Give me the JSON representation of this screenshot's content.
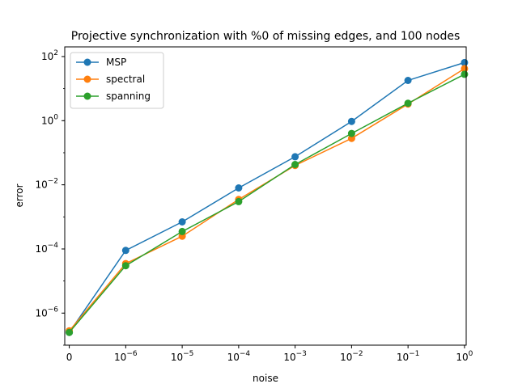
{
  "chart_data": {
    "type": "line",
    "title": "Projective synchronization with %0 of missing edges, and 100 nodes",
    "xlabel": "noise",
    "ylabel": "error",
    "x_scale": "symlog",
    "y_scale": "log",
    "grid": false,
    "legend_position": "top-left",
    "x_ticks": [
      {
        "value": 0,
        "base": "0",
        "exp": ""
      },
      {
        "value": 1e-06,
        "base": "10",
        "exp": "−6"
      },
      {
        "value": 1e-05,
        "base": "10",
        "exp": "−5"
      },
      {
        "value": 0.0001,
        "base": "10",
        "exp": "−4"
      },
      {
        "value": 0.001,
        "base": "10",
        "exp": "−3"
      },
      {
        "value": 0.01,
        "base": "10",
        "exp": "−2"
      },
      {
        "value": 0.1,
        "base": "10",
        "exp": "−1"
      },
      {
        "value": 1,
        "base": "10",
        "exp": "0"
      }
    ],
    "y_ticks": [
      {
        "value": 1e-06,
        "base": "10",
        "exp": "−6"
      },
      {
        "value": 0.0001,
        "base": "10",
        "exp": "−4"
      },
      {
        "value": 0.01,
        "base": "10",
        "exp": "−2"
      },
      {
        "value": 1,
        "base": "10",
        "exp": "0"
      },
      {
        "value": 100,
        "base": "10",
        "exp": "2"
      }
    ],
    "ylim": [
      1e-07,
      200
    ],
    "x": [
      0,
      1e-06,
      1e-05,
      0.0001,
      0.001,
      0.01,
      0.1,
      1
    ],
    "series": [
      {
        "name": "MSP",
        "color": "#1f77b4",
        "values": [
          2.5e-07,
          9e-05,
          0.0007,
          0.008,
          0.075,
          0.95,
          18,
          65
        ]
      },
      {
        "name": "spectral",
        "color": "#ff7f0e",
        "values": [
          2.8e-07,
          3.5e-05,
          0.00025,
          0.0035,
          0.04,
          0.28,
          3.3,
          42
        ]
      },
      {
        "name": "spanning",
        "color": "#2ca02c",
        "values": [
          2.5e-07,
          3e-05,
          0.00035,
          0.003,
          0.043,
          0.4,
          3.5,
          28
        ]
      }
    ]
  }
}
